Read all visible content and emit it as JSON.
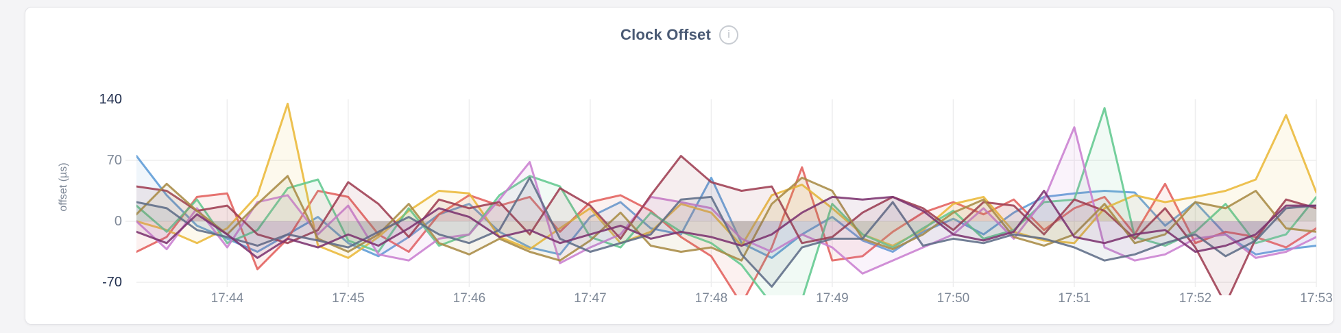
{
  "page": {
    "background": "#f4f4f6"
  },
  "card": {
    "background": "#ffffff",
    "border_color": "#e3e3e7"
  },
  "header": {
    "title": "Clock Offset",
    "info_icon_glyph": "i"
  },
  "colors": {
    "title_text": "#4a5a74",
    "tick_gray": "#7e8897",
    "tick_dark": "#1f2d4d",
    "grid": "#ededee"
  },
  "chart_data": {
    "type": "line",
    "title": "Clock Offset",
    "ylabel": "offset (µs)",
    "xlabel": "",
    "legend": "hidden",
    "grid": true,
    "baseline": 0,
    "ylim": [
      -85,
      167
    ],
    "y_ticks": [
      {
        "label": "140",
        "value": 140,
        "emphasis": true
      },
      {
        "label": "70",
        "value": 70,
        "emphasis": false
      },
      {
        "label": "0",
        "value": 0,
        "emphasis": false
      },
      {
        "label": "-70",
        "value": -70,
        "emphasis": true
      }
    ],
    "x_ticks": [
      "17:44",
      "17:45",
      "17:46",
      "17:47",
      "17:48",
      "17:49",
      "17:50",
      "17:51",
      "17:52",
      "17:53"
    ],
    "x_start": "17:43:15",
    "x_end": "17:53:00",
    "sample_interval_seconds": 15,
    "unit": "µs",
    "series": [
      {
        "name": "series-blue",
        "color": "#5C9BD6",
        "values": [
          75,
          30,
          -5,
          -20,
          -35,
          -15,
          5,
          -25,
          -40,
          -18,
          8,
          20,
          -12,
          -30,
          -38,
          5,
          22,
          -8,
          -15,
          50,
          -25,
          -42,
          -15,
          5,
          -22,
          -35,
          -12,
          3,
          -15,
          10,
          28,
          32,
          35,
          33,
          -5,
          22,
          -15,
          -38,
          -32,
          -28,
          -28
        ]
      },
      {
        "name": "series-red",
        "color": "#E2605C",
        "values": [
          -35,
          -18,
          28,
          32,
          -55,
          -20,
          35,
          28,
          -15,
          -35,
          8,
          30,
          18,
          28,
          -12,
          22,
          30,
          12,
          -18,
          -40,
          -95,
          -30,
          62,
          -45,
          -40,
          -12,
          10,
          22,
          8,
          25,
          -10,
          15,
          28,
          -15,
          43,
          -25,
          -12,
          -18,
          -30,
          -8,
          -8
        ]
      },
      {
        "name": "series-yellow",
        "color": "#EAB839",
        "values": [
          0,
          -10,
          -25,
          -8,
          30,
          135,
          -28,
          -42,
          -18,
          12,
          35,
          32,
          -18,
          -32,
          -8,
          15,
          -25,
          -12,
          20,
          10,
          -28,
          30,
          42,
          15,
          -15,
          -28,
          -10,
          20,
          28,
          -12,
          -22,
          -25,
          15,
          30,
          22,
          28,
          35,
          48,
          122,
          33,
          33
        ]
      },
      {
        "name": "series-green",
        "color": "#62C890",
        "values": [
          18,
          -12,
          25,
          -25,
          -10,
          38,
          48,
          -22,
          -35,
          15,
          -28,
          -15,
          30,
          52,
          40,
          -18,
          -30,
          10,
          -12,
          -25,
          -50,
          -95,
          -90,
          20,
          -15,
          -30,
          -8,
          12,
          -20,
          -10,
          22,
          25,
          130,
          -18,
          -28,
          -12,
          20,
          -25,
          -15,
          28,
          28
        ]
      },
      {
        "name": "series-orchid",
        "color": "#C97FD0",
        "values": [
          0,
          -32,
          15,
          -30,
          22,
          30,
          -15,
          18,
          -38,
          -45,
          -20,
          -15,
          25,
          68,
          -48,
          -30,
          -15,
          28,
          22,
          15,
          -20,
          -35,
          -15,
          -30,
          -60,
          -45,
          -30,
          -15,
          15,
          -20,
          25,
          108,
          -30,
          -45,
          -38,
          -20,
          -15,
          -42,
          -35,
          -18,
          -18
        ]
      },
      {
        "name": "series-maroon",
        "color": "#9E3D52",
        "values": [
          40,
          35,
          12,
          18,
          -15,
          -25,
          -10,
          45,
          20,
          -18,
          25,
          15,
          22,
          -15,
          38,
          18,
          -20,
          30,
          75,
          45,
          35,
          40,
          -25,
          -18,
          10,
          28,
          15,
          -10,
          22,
          18,
          -15,
          25,
          12,
          -20,
          15,
          -30,
          -95,
          -20,
          25,
          15,
          15
        ]
      },
      {
        "name": "series-khaki",
        "color": "#A98B45",
        "values": [
          8,
          43,
          12,
          -15,
          20,
          52,
          -20,
          -35,
          -15,
          20,
          -25,
          -38,
          -20,
          -35,
          -45,
          -22,
          10,
          -28,
          -35,
          -30,
          -45,
          20,
          50,
          35,
          -20,
          -32,
          -15,
          10,
          25,
          -18,
          -28,
          -15,
          20,
          -25,
          -15,
          22,
          15,
          35,
          -8,
          -12,
          -12
        ]
      },
      {
        "name": "series-slate",
        "color": "#5E6D88",
        "values": [
          22,
          15,
          -10,
          -18,
          -28,
          -15,
          -22,
          -30,
          -12,
          5,
          -15,
          -25,
          -10,
          50,
          -20,
          -35,
          -25,
          -15,
          25,
          28,
          -38,
          -75,
          -30,
          -20,
          -20,
          22,
          -28,
          -20,
          -25,
          -15,
          -20,
          -30,
          -45,
          -38,
          -25,
          -15,
          -40,
          -22,
          15,
          18,
          18
        ]
      },
      {
        "name": "series-plum",
        "color": "#7C3370",
        "values": [
          -12,
          -25,
          8,
          -15,
          -42,
          -20,
          -30,
          -15,
          -28,
          -8,
          15,
          5,
          -18,
          -10,
          -25,
          -15,
          -5,
          -20,
          -12,
          -18,
          -28,
          -15,
          10,
          28,
          25,
          28,
          12,
          -15,
          -22,
          -12,
          35,
          -18,
          -25,
          -15,
          -10,
          -35,
          -28,
          -15,
          18,
          18,
          18
        ]
      }
    ]
  }
}
